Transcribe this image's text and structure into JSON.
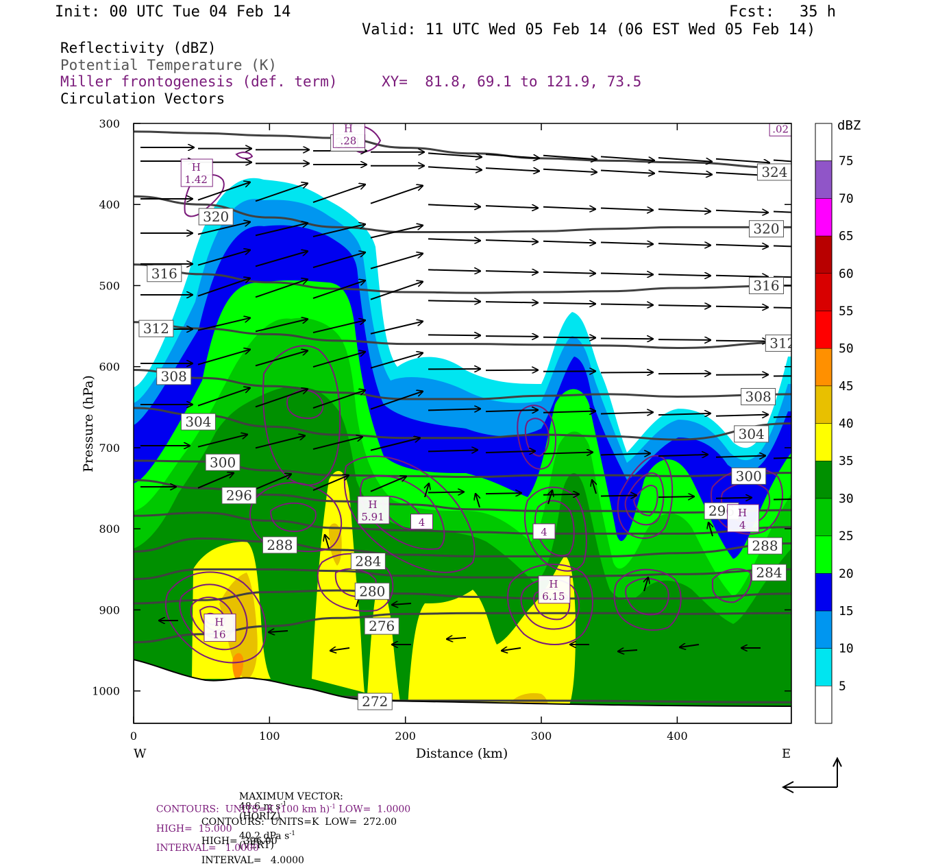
{
  "header": {
    "init": "Init: 00 UTC Tue 04 Feb 14",
    "fcst_label": "Fcst:",
    "fcst_value": "35 h",
    "valid": "Valid: 11 UTC Wed 05 Feb 14 (06 EST Wed 05 Feb 14)"
  },
  "fields": {
    "reflectivity": "Reflectivity (dBZ)",
    "theta": "Potential Temperature (K)",
    "frontogenesis": "Miller frontogenesis (def. term)",
    "xy": "XY=  81.8, 69.1 to 121.9, 73.5",
    "vectors": "Circulation Vectors"
  },
  "colors": {
    "theta_line": "#404040",
    "frontogenesis": "#7a1a7a",
    "vector": "#000000",
    "terrain": "#ffffff"
  },
  "chart_data": {
    "type": "cross-section",
    "xlabel": "Distance (km)",
    "ylabel": "Pressure (hPa)",
    "x_ticks": [
      0,
      100,
      200,
      300,
      400
    ],
    "y_ticks": [
      300,
      400,
      500,
      600,
      700,
      800,
      900,
      1000
    ],
    "xlim": [
      0,
      484
    ],
    "ylim": [
      300,
      1040
    ],
    "left_end": "W",
    "right_end": "E",
    "colorbar": {
      "title": "dBZ",
      "levels": [
        5,
        10,
        15,
        20,
        25,
        30,
        35,
        40,
        45,
        50,
        55,
        60,
        65,
        70,
        75
      ],
      "colors": [
        "#ffffff",
        "#00e5f0",
        "#0096f0",
        "#0000f0",
        "#00ff00",
        "#00c800",
        "#009000",
        "#ffff00",
        "#e8c000",
        "#ff9000",
        "#ff0000",
        "#d80000",
        "#b80000",
        "#ff00ff",
        "#9055c8"
      ]
    },
    "theta_contours": [
      {
        "value": 324,
        "label": "324",
        "points": [
          [
            0,
            310
          ],
          [
            50,
            312
          ],
          [
            100,
            315
          ],
          [
            150,
            318
          ],
          [
            200,
            330
          ],
          [
            250,
            337
          ],
          [
            300,
            343
          ],
          [
            350,
            346
          ],
          [
            400,
            348
          ],
          [
            484,
            355
          ]
        ],
        "labels_at": [
          [
            145,
            324
          ],
          [
            459,
            360
          ]
        ]
      },
      {
        "value": 320,
        "label": "320",
        "points": [
          [
            0,
            390
          ],
          [
            50,
            400
          ],
          [
            100,
            416
          ],
          [
            150,
            428
          ],
          [
            200,
            434
          ],
          [
            250,
            434
          ],
          [
            300,
            433
          ],
          [
            350,
            430
          ],
          [
            400,
            428
          ],
          [
            484,
            428
          ]
        ],
        "labels_at": [
          [
            48,
            415
          ],
          [
            453,
            430
          ]
        ]
      },
      {
        "value": 316,
        "label": "316",
        "points": [
          [
            0,
            474
          ],
          [
            50,
            486
          ],
          [
            100,
            496
          ],
          [
            150,
            504
          ],
          [
            200,
            508
          ],
          [
            250,
            509
          ],
          [
            300,
            508
          ],
          [
            350,
            507
          ],
          [
            400,
            503
          ],
          [
            484,
            500
          ]
        ],
        "labels_at": [
          [
            10,
            485
          ],
          [
            453,
            500
          ]
        ]
      },
      {
        "value": 312,
        "label": "312",
        "points": [
          [
            0,
            545
          ],
          [
            50,
            553
          ],
          [
            100,
            560
          ],
          [
            150,
            568
          ],
          [
            200,
            572
          ],
          [
            250,
            572
          ],
          [
            300,
            573
          ],
          [
            350,
            574
          ],
          [
            400,
            577
          ],
          [
            484,
            570
          ]
        ],
        "labels_at": [
          [
            4,
            553
          ],
          [
            465,
            571
          ]
        ]
      },
      {
        "value": 308,
        "label": "308",
        "points": [
          [
            0,
            604
          ],
          [
            50,
            614
          ],
          [
            100,
            624
          ],
          [
            150,
            632
          ],
          [
            200,
            640
          ],
          [
            250,
            640
          ],
          [
            300,
            636
          ],
          [
            350,
            634
          ],
          [
            400,
            637
          ],
          [
            484,
            634
          ]
        ],
        "labels_at": [
          [
            17,
            612
          ],
          [
            447,
            637
          ]
        ]
      },
      {
        "value": 304,
        "label": "304",
        "points": [
          [
            0,
            651
          ],
          [
            50,
            660
          ],
          [
            100,
            674
          ],
          [
            150,
            684
          ],
          [
            200,
            688
          ],
          [
            250,
            688
          ],
          [
            300,
            684
          ],
          [
            350,
            686
          ],
          [
            400,
            690
          ],
          [
            484,
            670
          ]
        ],
        "labels_at": [
          [
            35,
            668
          ],
          [
            442,
            683
          ]
        ]
      },
      {
        "value": 300,
        "label": "300",
        "points": [
          [
            0,
            716
          ],
          [
            50,
            717
          ],
          [
            100,
            728
          ],
          [
            150,
            734
          ],
          [
            200,
            735
          ],
          [
            250,
            736
          ],
          [
            300,
            734
          ],
          [
            350,
            734
          ],
          [
            400,
            735
          ],
          [
            484,
            731
          ]
        ],
        "labels_at": [
          [
            53,
            718
          ],
          [
            440,
            735
          ]
        ]
      },
      {
        "value": 296,
        "label": "296",
        "points": [
          [
            0,
            740
          ],
          [
            50,
            750
          ],
          [
            100,
            758
          ],
          [
            150,
            766
          ],
          [
            200,
            770
          ],
          [
            250,
            776
          ],
          [
            300,
            778
          ],
          [
            350,
            778
          ],
          [
            400,
            780
          ],
          [
            484,
            777
          ]
        ],
        "labels_at": [
          [
            65,
            759
          ],
          [
            420,
            778
          ]
        ]
      },
      {
        "value": 292,
        "label": "292",
        "points": [
          [
            0,
            784
          ],
          [
            50,
            780
          ],
          [
            100,
            790
          ],
          [
            150,
            799
          ],
          [
            200,
            802
          ],
          [
            250,
            804
          ],
          [
            300,
            806
          ],
          [
            350,
            806
          ],
          [
            400,
            806
          ],
          [
            484,
            798
          ]
        ],
        "labels_at": []
      },
      {
        "value": 288,
        "label": "288",
        "points": [
          [
            0,
            828
          ],
          [
            50,
            812
          ],
          [
            100,
            816
          ],
          [
            150,
            826
          ],
          [
            200,
            832
          ],
          [
            250,
            834
          ],
          [
            300,
            834
          ],
          [
            350,
            834
          ],
          [
            400,
            830
          ],
          [
            484,
            818
          ]
        ],
        "labels_at": [
          [
            95,
            820
          ],
          [
            452,
            821
          ]
        ]
      },
      {
        "value": 284,
        "label": "284",
        "points": [
          [
            0,
            862
          ],
          [
            50,
            850
          ],
          [
            100,
            850
          ],
          [
            150,
            852
          ],
          [
            200,
            858
          ],
          [
            250,
            860
          ],
          [
            300,
            860
          ],
          [
            350,
            858
          ],
          [
            400,
            856
          ],
          [
            484,
            850
          ]
        ],
        "labels_at": [
          [
            160,
            840
          ],
          [
            455,
            854
          ]
        ]
      },
      {
        "value": 280,
        "label": "280",
        "points": [
          [
            0,
            892
          ],
          [
            50,
            888
          ],
          [
            100,
            878
          ],
          [
            150,
            876
          ],
          [
            200,
            880
          ],
          [
            250,
            884
          ],
          [
            300,
            886
          ],
          [
            350,
            886
          ],
          [
            400,
            886
          ],
          [
            484,
            880
          ]
        ],
        "labels_at": [
          [
            163,
            877
          ]
        ]
      },
      {
        "value": 276,
        "label": "276",
        "points": [
          [
            0,
            940
          ],
          [
            50,
            930
          ],
          [
            100,
            920
          ],
          [
            150,
            910
          ],
          [
            200,
            905
          ],
          [
            250,
            904
          ],
          [
            300,
            904
          ],
          [
            350,
            904
          ],
          [
            400,
            905
          ],
          [
            484,
            904
          ]
        ],
        "labels_at": [
          [
            170,
            920
          ]
        ]
      },
      {
        "value": 272,
        "label": "272",
        "points": [
          [
            150,
            1007
          ],
          [
            200,
            1012
          ],
          [
            250,
            1012
          ],
          [
            300,
            1012
          ],
          [
            484,
            1014
          ]
        ],
        "labels_at": [
          [
            165,
            1013
          ]
        ]
      }
    ],
    "frontogenesis_maxima": [
      {
        "label": "H",
        "value": "1.42",
        "x": 46,
        "p": 366
      },
      {
        "label": "H",
        "value": ".28",
        "x": 158,
        "p": 318
      },
      {
        "label": "H",
        "value": "5.91",
        "x": 176,
        "p": 782
      },
      {
        "label": "H",
        "value": "6.15",
        "x": 309,
        "p": 880
      },
      {
        "label": "H",
        "value": "16",
        "x": 63,
        "p": 927
      },
      {
        "label": "H",
        "value": "4",
        "x": 448,
        "p": 792
      }
    ],
    "frontogenesis_labels": [
      {
        "value": ".02",
        "x": 476,
        "p": 307
      },
      {
        "value": "4",
        "x": 212,
        "p": 792
      },
      {
        "value": "4",
        "x": 302,
        "p": 804
      }
    ],
    "footer": {
      "max_vector_label": "MAXIMUM VECTOR:",
      "max_vector_horiz": "48.6 m s",
      "horiz_exp": "-1",
      "horiz_tag": "(HORIZ)",
      "max_vector_vert": "40.2 dPa s",
      "vert_exp": "-1",
      "vert_tag": "(VERT)",
      "contours1_a": "CONTOURS:  UNITS=K (100 km h)",
      "contours1_exp": "-1",
      "contours1_b": " LOW=  1.0000",
      "contours1_high": "HIGH=  15.000",
      "contours1_int": "INTERVAL=   1.0000",
      "contours2_a": "CONTOURS:  UNITS=K  LOW=  272.00",
      "contours2_high": "HIGH=  396.00",
      "contours2_int": "INTERVAL=   4.0000"
    }
  }
}
